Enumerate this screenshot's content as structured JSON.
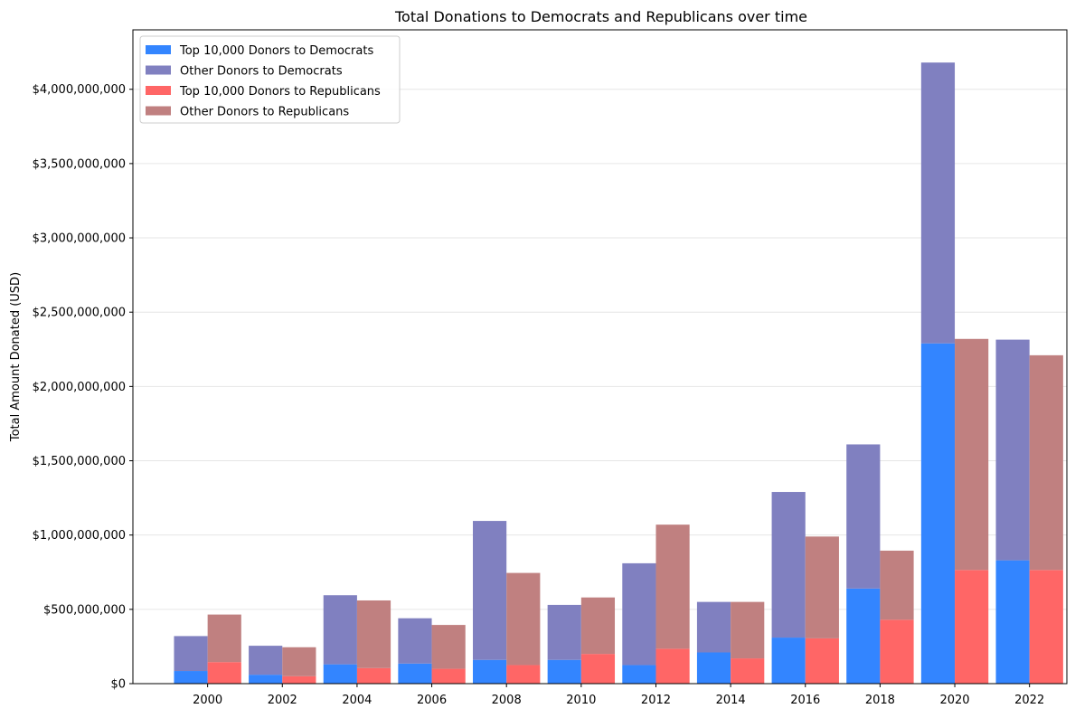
{
  "chart_data": {
    "type": "bar",
    "title": "Total Donations to Democrats and Republicans over time",
    "xlabel": "",
    "ylabel": "Total Amount Donated (USD)",
    "stacked": true,
    "grid": "horizontal",
    "legend_position": "top-left",
    "categories": [
      "2000",
      "2002",
      "2004",
      "2006",
      "2008",
      "2010",
      "2012",
      "2014",
      "2016",
      "2018",
      "2020",
      "2022"
    ],
    "ylim": [
      0,
      4400000000
    ],
    "yticks": [
      0,
      500000000,
      1000000000,
      1500000000,
      2000000000,
      2500000000,
      3000000000,
      3500000000,
      4000000000
    ],
    "ytick_labels": [
      "$0",
      "$500,000,000",
      "$1,000,000,000",
      "$1,500,000,000",
      "$2,000,000,000",
      "$2,500,000,000",
      "$3,000,000,000",
      "$3,500,000,000",
      "$4,000,000,000"
    ],
    "groups": [
      {
        "party": "Democrats",
        "series": [
          {
            "name": "Top 10,000 Donors to Democrats",
            "color": "#3385ff",
            "values": [
              85000000,
              60000000,
              130000000,
              135000000,
              160000000,
              160000000,
              125000000,
              210000000,
              310000000,
              640000000,
              2290000000,
              830000000
            ]
          },
          {
            "name": "Other Donors to Democrats",
            "color": "#8080c0",
            "values": [
              235000000,
              195000000,
              465000000,
              305000000,
              935000000,
              370000000,
              685000000,
              340000000,
              980000000,
              970000000,
              1890000000,
              1485000000
            ]
          }
        ]
      },
      {
        "party": "Republicans",
        "series": [
          {
            "name": "Top 10,000 Donors to Republicans",
            "color": "#ff6666",
            "values": [
              145000000,
              50000000,
              105000000,
              100000000,
              125000000,
              200000000,
              235000000,
              170000000,
              305000000,
              430000000,
              765000000,
              765000000
            ]
          },
          {
            "name": "Other Donors to Republicans",
            "color": "#c08080",
            "values": [
              320000000,
              195000000,
              455000000,
              295000000,
              620000000,
              380000000,
              835000000,
              380000000,
              685000000,
              465000000,
              1555000000,
              1445000000
            ]
          }
        ]
      }
    ]
  }
}
